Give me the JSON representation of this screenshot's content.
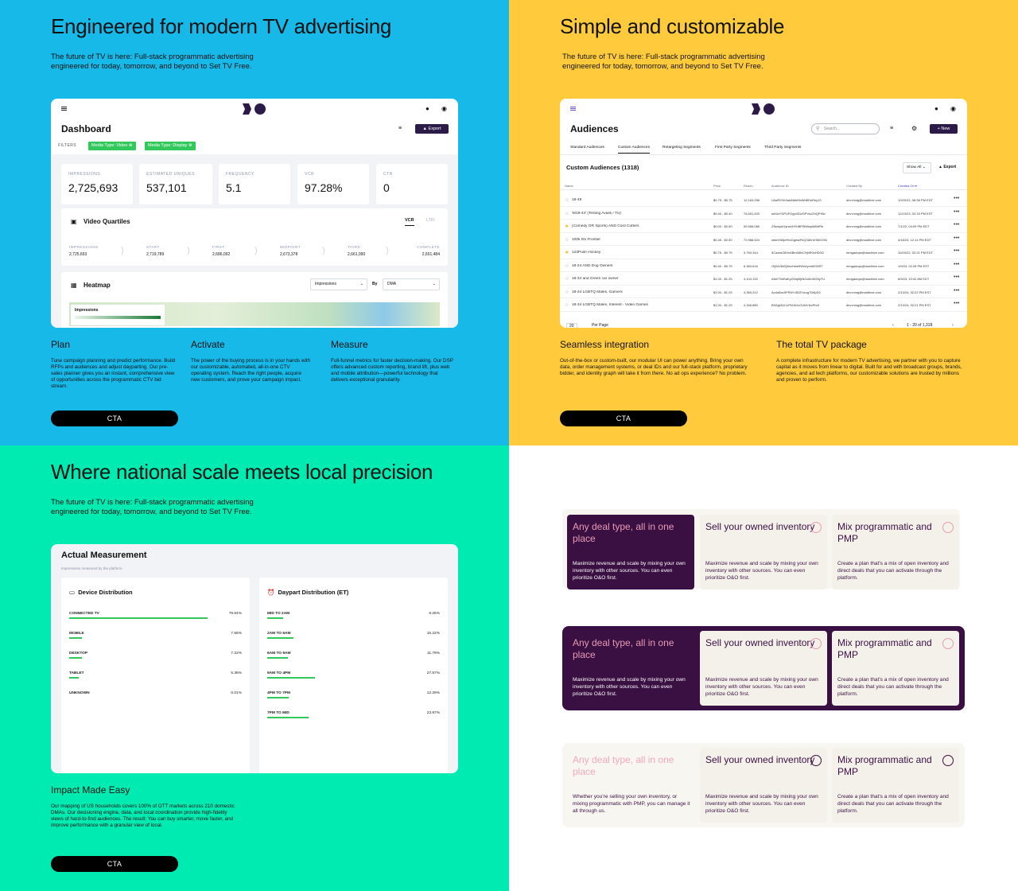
{
  "q1": {
    "title": "Engineered for modern TV advertising",
    "subtitle": "The future of TV is here: Full-stack programmatic advertising engineered for today, tomorrow, and beyond to Set TV Free.",
    "dashboard": {
      "title": "Dashboard",
      "export_label": "Export",
      "filters_label": "FILTERS",
      "filter1": "Media Type: Video",
      "filter2": "Media Type: Display",
      "kpis": [
        {
          "label": "IMPRESSIONS",
          "value": "2,725,693"
        },
        {
          "label": "ESTIMATED UNIQUES",
          "value": "537,101"
        },
        {
          "label": "FREQUENCY",
          "value": "5.1"
        },
        {
          "label": "VCR",
          "value": "97.28%"
        },
        {
          "label": "CTR",
          "value": "0"
        }
      ],
      "quartiles": {
        "title": "Video Quartiles",
        "tab_active": "VCR",
        "tab_inactive": "LTR",
        "steps": [
          {
            "label": "IMPRESSIONS",
            "value": "2,725,693"
          },
          {
            "label": "START",
            "value": "2,719,789"
          },
          {
            "label": "FIRST",
            "value": "2,686,092"
          },
          {
            "label": "MIDPOINT",
            "value": "2,673,378"
          },
          {
            "label": "THIRD",
            "value": "2,661,090"
          },
          {
            "label": "COMPLETE",
            "value": "2,651,484"
          }
        ]
      },
      "heatmap": {
        "title": "Heatmap",
        "select1": "Impressions",
        "by_label": "By",
        "select2": "DMA",
        "legend_title": "Impressions"
      }
    },
    "features": [
      {
        "title": "Plan",
        "desc": "Tune campaign planning and predict performance. Build RFPs and audiences and adjust dayparting. Our pre-sales planner gives you an instant, comprehensive view of opportunities across the programmatic CTV bid stream."
      },
      {
        "title": "Activate",
        "desc": "The power of the buying process is in your hands with our customizable, automated, all-in-one CTV operating system. Reach the right people, acquire new customers, and prove your campaign impact."
      },
      {
        "title": "Measure",
        "desc": "Full-funnel metrics for faster decision-making. Our DSP offers advanced custom reporting, brand lift, plus web and mobile attribution—powerful technology that delivers exceptional granularity."
      }
    ],
    "cta": "CTA"
  },
  "q2": {
    "title": "Simple and customizable",
    "subtitle": "The future of TV is here: Full-stack programmatic advertising engineered for today, tomorrow, and beyond to Set TV Free.",
    "audiences": {
      "title": "Audiences",
      "search_placeholder": "Search...",
      "new_label": "New",
      "tabs": [
        "Standard Audiences",
        "Custom Audiences",
        "Retargeting Segments",
        "First Party Segments",
        "Third Party Segments"
      ],
      "section_title": "Custom Audiences (1318)",
      "show_all": "Show All",
      "export_label": "Export",
      "columns": [
        "Name",
        "Price",
        "Reach",
        "Audience ID",
        "Created By",
        "Created On"
      ],
      "rows": [
        {
          "name": "18-49",
          "price": "$0.75 - $0.75",
          "reach": "12,164,096",
          "id": "L8wR2Xh3ahAMeMnWr8IDsRey13",
          "by": "dev.mmg@madhive.com",
          "on": "10/20/21, 08:36 PM EDT",
          "star": false
        },
        {
          "name": "'M18-44' (Testing Avails / TU)",
          "price": "$0.40 - $0.40",
          "reach": "76,651,520",
          "id": "sdXwYDPUFDyptXDzSPVozZhQPHkr",
          "by": "dev.mmg@madhive.com",
          "on": "12/10/23, 02:33 PM EST",
          "star": false
        },
        {
          "name": "(Comedy OR Sports) AND Cord Cutters",
          "price": "$0.00 - $2.50",
          "reach": "59,966,080",
          "id": "Z5smyhGyhxbHYbBPI5Wwpl#8WRk",
          "by": "dev.mmg@madhive.com",
          "on": "7/1/22, 04:09 PM EDT",
          "star": true
        },
        {
          "name": "100k hhi Frontier",
          "price": "$0.45 - $2.50",
          "reach": "72,986,624",
          "id": "xekrrDMpH9oGgwwFkQ3IAVnH0#VGN",
          "by": "dev.mmg@madhive.com",
          "on": "4/18/24, 12:14 PM EDT",
          "star": false
        },
        {
          "name": "123Push Hockey",
          "price": "$0.75 - $0.75",
          "reach": "3,769,344",
          "id": "5CaxiwOIlHn6Bm0i8vCHjhR0xHD0G",
          "by": "mmgadops@madhive.com",
          "on": "10/20/22, 02:21 PM EDT",
          "star": true
        },
        {
          "name": "18-24 AND Dog Owners",
          "price": "$0.40 - $0.75",
          "reach": "6,383,616",
          "id": "OIjWv3bfQ8ncHwe6Wneymd0O8ST",
          "by": "mmgadops@madhive.com",
          "on": "1/9/24, 02:28 PM EST",
          "star": false
        },
        {
          "name": "18-34 and Green car owner",
          "price": "$1.00 - $1.25",
          "reach": "4,104,192",
          "id": "ANe7SbRaKyZWqMjINGaSoW25yTU",
          "by": "mmgadops@madhive.com",
          "on": "6/9/23, 10:42 AM EDT",
          "star": false
        },
        {
          "name": "18-34 LGBTQ Males, Gamers",
          "price": "$1.00 - $1.25",
          "reach": "4,365,312",
          "id": "Ao4sBov9FR6Yr35JFxcog7D8pD2",
          "by": "dev.mmg@madhive.com",
          "on": "2/13/24, 02:22 PM EST",
          "star": false
        },
        {
          "name": "18-34 LGBTQ Males, Interest - Video Games",
          "price": "$1.00 - $1.25",
          "reach": "4,346,880",
          "id": "B9Zgb51CuPt2AGcOVeIVlzcPhrlt",
          "by": "dev.mmg@madhive.com",
          "on": "2/13/24, 02:21 PM EST",
          "star": false
        }
      ],
      "per_page_value": "20",
      "per_page_label": "Per Page",
      "pagination": "1 - 20 of 1,318"
    },
    "features": [
      {
        "title": "Seamless integration",
        "desc": "Out-of-the-box or custom-built, our modular UI can power anything. Bring your own data, order management systems, or deal IDs and our full-stack platform, proprietary bidder, and identity graph will take it from there. No ad ops experience? No problem."
      },
      {
        "title": "The total TV package",
        "desc": "A complete infrastructure for modern TV advertising, we partner with you to capture capital as it moves from linear to digital. Built for and with broadcast groups, brands, agencies, and ad tech platforms, our customizable solutions are trusted by millions and proven to perform."
      }
    ],
    "cta": "CTA"
  },
  "q3": {
    "title": "Where national scale meets local precision",
    "subtitle": "The future of TV is here: Full-stack programmatic advertising engineered for today, tomorrow, and beyond to Set TV Free.",
    "measurement": {
      "title": "Actual Measurement",
      "subtitle": "Impressions measured by the platform.",
      "device": {
        "title": "Device Distribution",
        "rows": [
          {
            "label": "CONNECTED TV",
            "pct": "79.84%",
            "value": 79.84
          },
          {
            "label": "MOBILE",
            "pct": "7.56%",
            "value": 7.56
          },
          {
            "label": "DESKTOP",
            "pct": "7.22%",
            "value": 7.22
          },
          {
            "label": "TABLET",
            "pct": "5.38%",
            "value": 5.38
          },
          {
            "label": "UNKNOWN",
            "pct": "0.01%",
            "value": 0.01
          }
        ]
      },
      "daypart": {
        "title": "Daypart Distribution (ET)",
        "rows": [
          {
            "label": "MID TO 2AM",
            "pct": "9.26%",
            "value": 9.26
          },
          {
            "label": "2AM TO 6AM",
            "pct": "15.22%",
            "value": 15.22
          },
          {
            "label": "6AM TO 9AM",
            "pct": "11.79%",
            "value": 11.79
          },
          {
            "label": "9AM TO 4PM",
            "pct": "27.57%",
            "value": 27.57
          },
          {
            "label": "4PM TO 7PM",
            "pct": "12.29%",
            "value": 12.29
          },
          {
            "label": "7PM TO MID",
            "pct": "23.87%",
            "value": 23.87
          }
        ]
      }
    },
    "feature": {
      "title": "Impact Made Easy",
      "desc": "Our mapping of US households covers 100% of OTT markets across 210 domestic DMAs. Our decisioning engine, data, and local coordination provide high-fidelity views of hard-to-find audiences. The result: You can buy smarter, move faster, and improve performance with a granular view of local."
    },
    "cta": "CTA"
  },
  "q4": {
    "rows": [
      [
        {
          "title": "Any deal type, all in one place",
          "desc": "Maximize revenue and scale by mixing your own inventory with other sources. You can even prioritize O&O first."
        },
        {
          "title": "Sell your owned inventory",
          "desc": "Maximize revenue and scale by mixing your own inventory with other sources. You can even prioritize O&O first."
        },
        {
          "title": "Mix programmatic and PMP",
          "desc": "Create a plan that's a mix of open inventory and direct deals that you can activate through the platform."
        }
      ],
      [
        {
          "title": "Any deal type, all in one place",
          "desc": "Maximize revenue and scale by mixing your own inventory with other sources. You can even prioritize O&O first."
        },
        {
          "title": "Sell your owned inventory",
          "desc": "Maximize revenue and scale by mixing your own inventory with other sources. You can even prioritize O&O first."
        },
        {
          "title": "Mix programmatic and PMP",
          "desc": "Create a plan that's a mix of open inventory and direct deals that you can activate through the platform."
        }
      ],
      [
        {
          "title": "Any deal type, all in one place",
          "desc": "Whether you're selling your own inventory, or mixing programmatic with PMP, you can manage it all through us."
        },
        {
          "title": "Sell your owned inventory",
          "desc": "Maximize revenue and scale by mixing your own inventory with other sources. You can even prioritize O&O first."
        },
        {
          "title": "Mix programmatic and PMP",
          "desc": "Create a plan that's a mix of open inventory and direct deals that you can activate through the platform."
        }
      ]
    ]
  },
  "colors": {
    "cyan": "#16b9e8",
    "yellow": "#ffcb3d",
    "mint": "#00ebb2",
    "purple": "#3a0f42",
    "cream": "#f4f1ea",
    "pink": "#e89cb4",
    "green": "#31c95b"
  }
}
